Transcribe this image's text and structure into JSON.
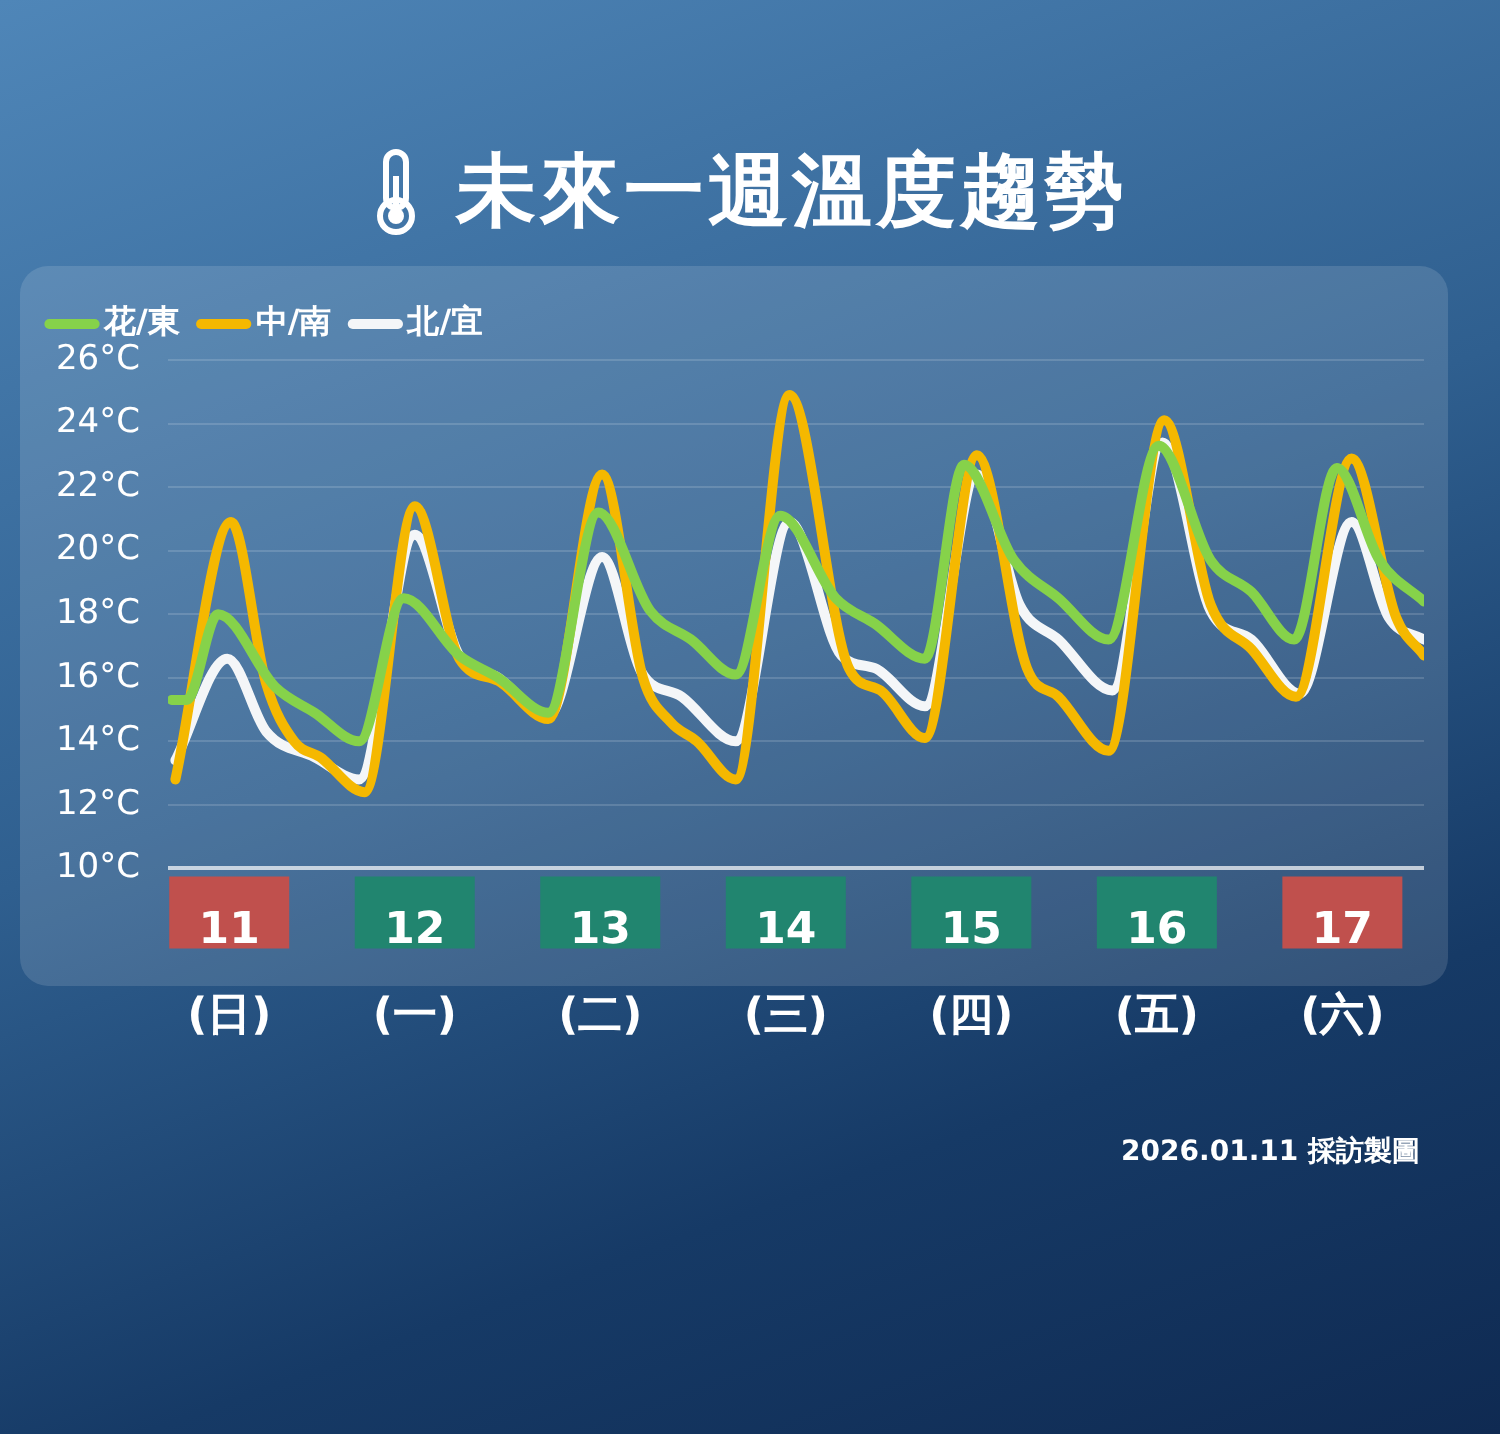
{
  "chart_data": {
    "type": "line",
    "title": "未來一週溫度趨勢",
    "annotations": [
      "2026.01.11 採訪製圖"
    ],
    "xlim": [
      10.67,
      17.44
    ],
    "xticks": [
      {
        "value": 11,
        "label": "11\n(日)"
      },
      {
        "value": 12,
        "label": "12\n(一)"
      },
      {
        "value": 13,
        "label": "13\n(二)"
      },
      {
        "value": 14,
        "label": "14\n(三)"
      },
      {
        "value": 15,
        "label": "15\n(四)"
      },
      {
        "value": 16,
        "label": "16\n(五)"
      },
      {
        "value": 17,
        "label": "17\n(六)"
      }
    ],
    "ylim": [
      10,
      26
    ],
    "yticks": [
      {
        "value": 10,
        "label": "10°C"
      },
      {
        "value": 12,
        "label": "12°C"
      },
      {
        "value": 14,
        "label": "14°C"
      },
      {
        "value": 16,
        "label": "16°C"
      },
      {
        "value": 18,
        "label": "18°C"
      },
      {
        "value": 20,
        "label": "20°C"
      },
      {
        "value": 22,
        "label": "22°C"
      },
      {
        "value": 24,
        "label": "24°C"
      },
      {
        "value": 26,
        "label": "26°C"
      }
    ],
    "grid": "y",
    "legend": "top left",
    "series": [
      {
        "name": "花/東",
        "color": "#86d24a",
        "x": [
          10.69,
          10.77,
          10.94,
          11.25,
          11.46,
          11.7,
          11.94,
          12.24,
          12.45,
          12.72,
          12.99,
          13.27,
          13.49,
          13.73,
          13.97,
          14.27,
          14.48,
          14.75,
          14.96,
          15.23,
          15.47,
          15.74,
          16.01,
          16.29,
          16.51,
          16.74,
          16.97,
          17.2,
          17.44
        ],
        "values": [
          15.3,
          15.3,
          18.0,
          15.7,
          14.9,
          14.0,
          18.5,
          16.7,
          16.0,
          14.9,
          21.2,
          18.1,
          17.2,
          16.1,
          21.1,
          18.5,
          17.7,
          16.6,
          22.7,
          19.7,
          18.5,
          17.2,
          23.3,
          19.7,
          18.7,
          17.2,
          22.6,
          19.7,
          18.4
        ]
      },
      {
        "name": "中/南",
        "color": "#f5b800",
        "x": [
          10.71,
          11.01,
          11.2,
          11.35,
          11.49,
          11.73,
          12.0,
          12.24,
          12.45,
          12.72,
          13.01,
          13.23,
          13.38,
          13.52,
          13.73,
          14.02,
          14.34,
          14.51,
          14.75,
          15.03,
          15.3,
          15.47,
          15.74,
          16.04,
          16.29,
          16.51,
          16.75,
          17.05,
          17.29,
          17.44
        ],
        "values": [
          12.8,
          20.9,
          15.8,
          14.0,
          13.5,
          12.4,
          21.4,
          16.6,
          15.9,
          14.7,
          22.4,
          16.0,
          14.6,
          14.0,
          12.8,
          24.9,
          16.3,
          15.6,
          14.1,
          23.0,
          16.3,
          15.4,
          13.7,
          24.1,
          18.3,
          16.9,
          15.4,
          22.9,
          17.9,
          16.7
        ]
      },
      {
        "name": "北/宜",
        "color": "#f4f6f8",
        "x": [
          10.71,
          10.99,
          11.2,
          11.46,
          11.7,
          12.0,
          12.24,
          12.45,
          12.72,
          13.01,
          13.22,
          13.44,
          13.73,
          14.02,
          14.3,
          14.48,
          14.75,
          15.03,
          15.26,
          15.47,
          15.76,
          16.03,
          16.29,
          16.51,
          16.77,
          17.05,
          17.25,
          17.44
        ],
        "values": [
          13.4,
          16.6,
          14.3,
          13.5,
          12.8,
          20.5,
          16.7,
          16.0,
          14.8,
          19.8,
          16.2,
          15.4,
          14.0,
          20.9,
          16.7,
          16.3,
          15.1,
          22.4,
          18.3,
          17.2,
          15.6,
          23.4,
          18.1,
          17.2,
          15.5,
          20.9,
          17.9,
          17.2
        ]
      }
    ]
  }
}
